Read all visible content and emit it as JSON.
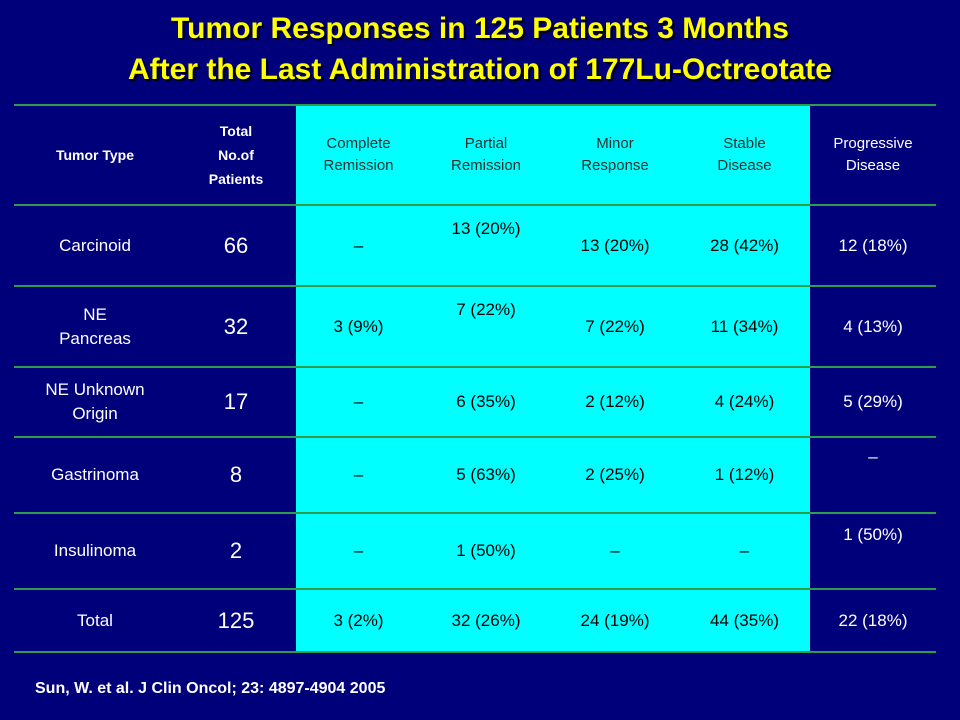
{
  "title": {
    "line1": "Tumor Responses in 125 Patients 3 Months",
    "line2": "After the Last Administration of 177Lu-Octreotate"
  },
  "colors": {
    "background": "#00007a",
    "title": "#ffff00",
    "highlight": "#00ffff",
    "rule": "#2e9c4a"
  },
  "table": {
    "headers": {
      "tumor_type": "Tumor Type",
      "total_line1": "Total",
      "total_line2": "No.of",
      "total_line3": "Patients",
      "cr_line1": "Complete",
      "cr_line2": "Remission",
      "pr_line1": "Partial",
      "pr_line2": "Remission",
      "mr_line1": "Minor",
      "mr_line2": "Response",
      "sd_line1": "Stable",
      "sd_line2": "Disease",
      "pd_line1": "Progressive",
      "pd_line2": "Disease"
    },
    "rows": [
      {
        "type_line1": "Carcinoid",
        "type_line2": "",
        "total": "66",
        "cr": "–",
        "pr": "13 (20%)",
        "mr": "13 (20%)",
        "sd": "28 (42%)",
        "pd": "12 (18%)"
      },
      {
        "type_line1": "NE",
        "type_line2": "Pancreas",
        "total": "32",
        "cr": "3 (9%)",
        "pr": "7 (22%)",
        "mr": "7 (22%)",
        "sd": "11 (34%)",
        "pd": "4 (13%)"
      },
      {
        "type_line1": "NE Unknown",
        "type_line2": "Origin",
        "total": "17",
        "cr": "–",
        "pr": "6 (35%)",
        "mr": "2 (12%)",
        "sd": "4 (24%)",
        "pd": "5 (29%)"
      },
      {
        "type_line1": "Gastrinoma",
        "type_line2": "",
        "total": "8",
        "cr": "–",
        "pr": "5 (63%)",
        "mr": "2 (25%)",
        "sd": "1 (12%)",
        "pd": "–"
      },
      {
        "type_line1": "Insulinoma",
        "type_line2": "",
        "total": "2",
        "cr": "–",
        "pr": "1 (50%)",
        "mr": "–",
        "sd": "–",
        "pd": "1 (50%)"
      },
      {
        "type_line1": "Total",
        "type_line2": "",
        "total": "125",
        "cr": "3 (2%)",
        "pr": "32 (26%)",
        "mr": "24 (19%)",
        "sd": "44 (35%)",
        "pd": "22 (18%)"
      }
    ]
  },
  "footnote": "Sun, W. et al. J Clin Oncol; 23: 4897-4904 2005"
}
